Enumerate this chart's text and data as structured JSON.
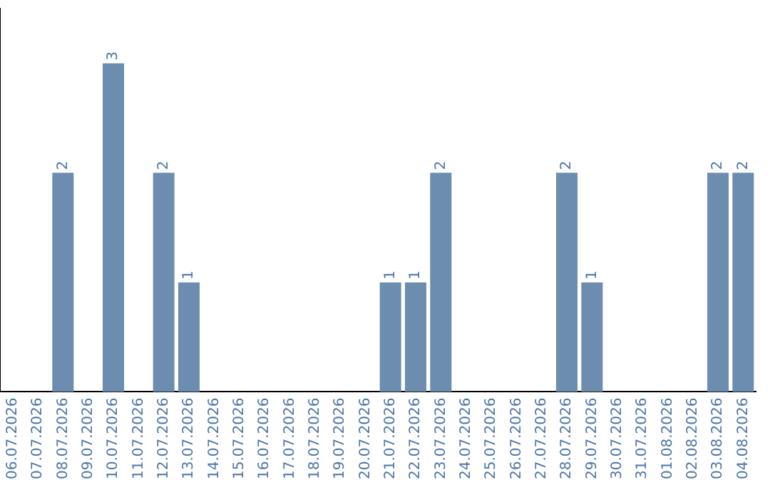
{
  "chart_data": {
    "type": "bar",
    "categories": [
      "06.07.2026",
      "07.07.2026",
      "08.07.2026",
      "09.07.2026",
      "10.07.2026",
      "11.07.2026",
      "12.07.2026",
      "13.07.2026",
      "14.07.2026",
      "15.07.2026",
      "16.07.2026",
      "17.07.2026",
      "18.07.2026",
      "19.07.2026",
      "20.07.2026",
      "21.07.2026",
      "22.07.2026",
      "23.07.2026",
      "24.07.2026",
      "25.07.2026",
      "26.07.2026",
      "27.07.2026",
      "28.07.2026",
      "29.07.2026",
      "30.07.2026",
      "31.07.2026",
      "01.08.2026",
      "02.08.2026",
      "03.08.2026",
      "04.08.2026"
    ],
    "values": [
      0,
      0,
      2,
      0,
      3,
      0,
      2,
      1,
      0,
      0,
      0,
      0,
      0,
      0,
      0,
      1,
      1,
      2,
      0,
      0,
      0,
      0,
      2,
      1,
      0,
      0,
      0,
      0,
      2,
      2
    ],
    "value_labels": [
      null,
      null,
      "2",
      null,
      "3",
      null,
      "2",
      "1",
      null,
      null,
      null,
      null,
      null,
      null,
      null,
      "1",
      "1",
      "2",
      null,
      null,
      null,
      null,
      "2",
      "1",
      null,
      null,
      null,
      null,
      "2",
      "2"
    ],
    "color": "#6d8db0",
    "grid": false,
    "legend": false,
    "tick_labels": "x"
  }
}
